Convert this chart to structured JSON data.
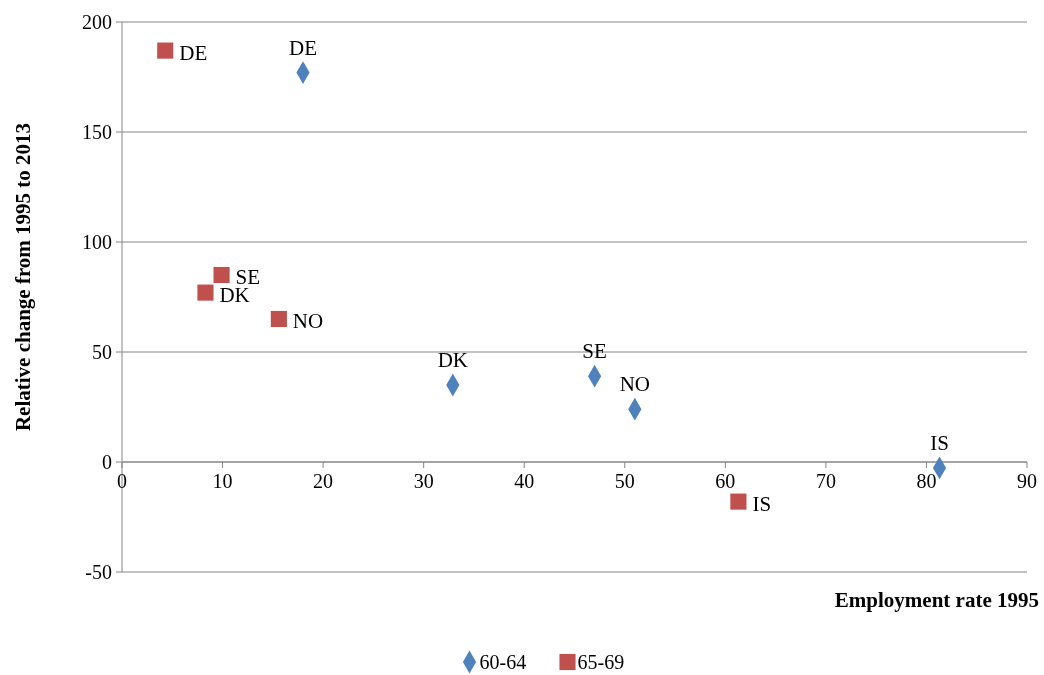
{
  "chart_data": {
    "type": "scatter",
    "xlabel": "Employment rate 1995",
    "ylabel": "Relative change from 1995 to 2013",
    "xlim": [
      0,
      90
    ],
    "xticks": [
      0,
      10,
      20,
      30,
      40,
      50,
      60,
      70,
      80,
      90
    ],
    "ylim": [
      -50,
      200
    ],
    "yticks": [
      -50,
      0,
      50,
      100,
      150,
      200
    ],
    "grid": "y",
    "legend": "bottom",
    "series": [
      {
        "name": "60-64",
        "color": "#4f81bd",
        "marker": "diamond",
        "x": [
          18,
          32.9,
          47,
          51,
          81.3
        ],
        "values": [
          177,
          35,
          39,
          24,
          -2.7
        ]
      },
      {
        "name": "65-69",
        "color": "#c0504d",
        "marker": "square",
        "x": [
          4.3,
          8.3,
          9.9,
          15.6,
          61.3
        ],
        "values": [
          187,
          77,
          85,
          65,
          -18
        ]
      }
    ],
    "annotations": [
      {
        "text": "DE",
        "x": 18,
        "y": 177
      },
      {
        "text": "DK",
        "x": 32.9,
        "y": 35
      },
      {
        "text": "SE",
        "x": 47,
        "y": 39
      },
      {
        "text": "NO",
        "x": 51,
        "y": 24
      },
      {
        "text": "IS",
        "x": 81.3,
        "y": -2.7
      },
      {
        "text": "DE",
        "x": 4.3,
        "y": 187
      },
      {
        "text": "DK",
        "x": 8.3,
        "y": 77
      },
      {
        "text": "SE",
        "x": 9.9,
        "y": 85
      },
      {
        "text": "NO",
        "x": 15.6,
        "y": 65
      },
      {
        "text": "IS",
        "x": 61.3,
        "y": -18
      }
    ]
  }
}
